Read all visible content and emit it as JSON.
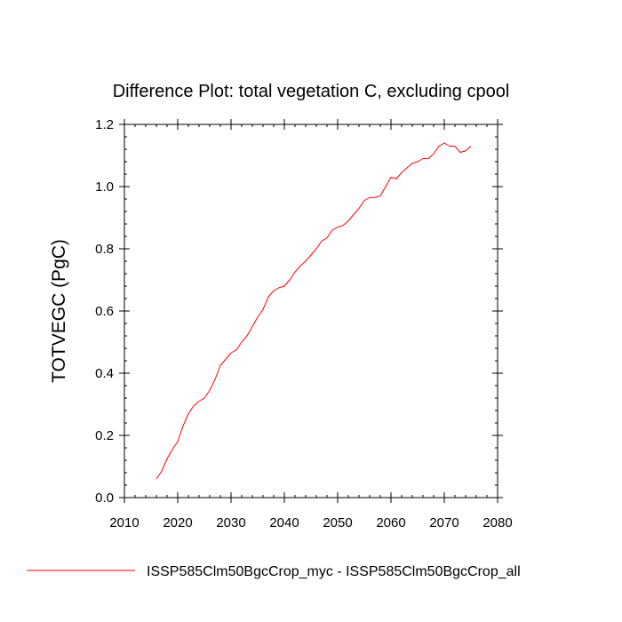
{
  "chart_data": {
    "type": "line",
    "title": "Difference Plot: total vegetation C, excluding cpool",
    "xlabel": "",
    "ylabel": "TOTVEGC  (PgC)",
    "xlim": [
      2010,
      2080
    ],
    "ylim": [
      0.0,
      1.2
    ],
    "xticks": [
      "2010",
      "2020",
      "2030",
      "2040",
      "2050",
      "2060",
      "2070",
      "2080"
    ],
    "yticks": [
      "0.0",
      "0.2",
      "0.4",
      "0.6",
      "0.8",
      "1.0",
      "1.2"
    ],
    "grid": false,
    "legend_position": "bottom",
    "series": [
      {
        "name": "ISSP585Clm50BgcCrop_myc - ISSP585Clm50BgcCrop_all",
        "color": "#ff0000",
        "x": [
          2016,
          2017,
          2018,
          2019,
          2020,
          2021,
          2022,
          2023,
          2024,
          2025,
          2026,
          2027,
          2028,
          2029,
          2030,
          2031,
          2032,
          2033,
          2034,
          2035,
          2036,
          2037,
          2038,
          2039,
          2040,
          2041,
          2042,
          2043,
          2044,
          2045,
          2046,
          2047,
          2048,
          2049,
          2050,
          2051,
          2052,
          2053,
          2054,
          2055,
          2056,
          2057,
          2058,
          2059,
          2060,
          2061,
          2062,
          2063,
          2064,
          2065,
          2066,
          2067,
          2068,
          2069,
          2070,
          2071,
          2072,
          2073,
          2074,
          2075
        ],
        "y": [
          0.06,
          0.085,
          0.125,
          0.155,
          0.18,
          0.23,
          0.27,
          0.295,
          0.31,
          0.32,
          0.345,
          0.38,
          0.425,
          0.445,
          0.465,
          0.475,
          0.5,
          0.52,
          0.55,
          0.58,
          0.605,
          0.645,
          0.665,
          0.675,
          0.68,
          0.7,
          0.725,
          0.745,
          0.76,
          0.78,
          0.8,
          0.825,
          0.835,
          0.86,
          0.87,
          0.875,
          0.89,
          0.91,
          0.93,
          0.955,
          0.965,
          0.965,
          0.97,
          1.0,
          1.03,
          1.025,
          1.045,
          1.06,
          1.075,
          1.08,
          1.09,
          1.09,
          1.105,
          1.13,
          1.14,
          1.13,
          1.13,
          1.11,
          1.115,
          1.13
        ]
      }
    ]
  }
}
